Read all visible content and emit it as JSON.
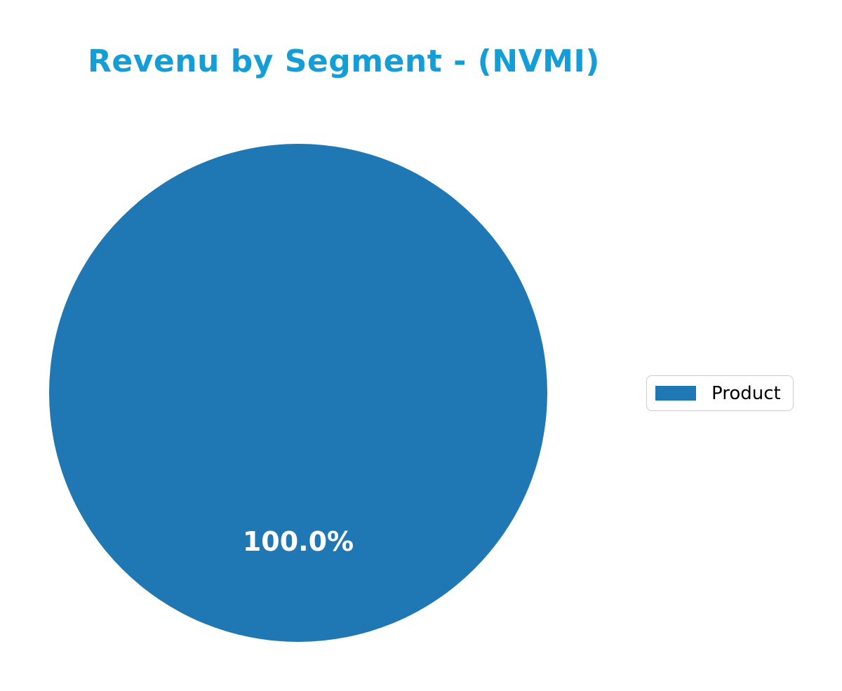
{
  "chart_data": {
    "type": "pie",
    "title": "Revenu by Segment - (NVMI)",
    "labels": [
      "Product"
    ],
    "values": [
      100.0
    ],
    "slice_labels": [
      "100.0%"
    ],
    "colors": [
      "#1f77b4"
    ],
    "title_color": "#149ed8",
    "slice_label_color": "#ffffff",
    "legend_position": "center right",
    "background_color": "#ffffff",
    "start_angle": 90
  }
}
